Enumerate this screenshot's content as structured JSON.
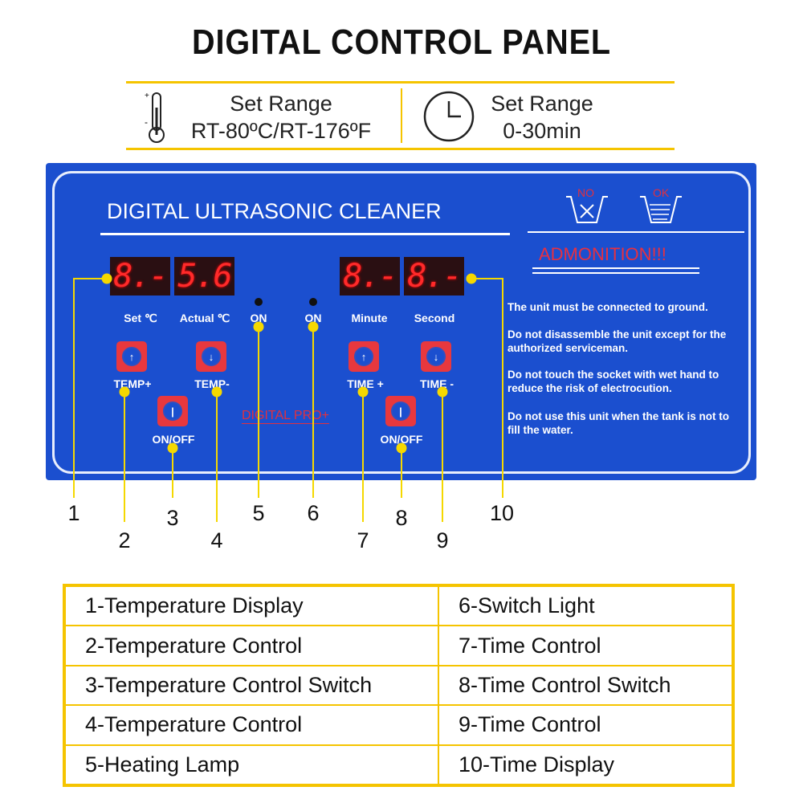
{
  "title": "DIGITAL CONTROL PANEL",
  "specs": [
    {
      "label": "Set Range",
      "value": "RT-80ºC/RT-176ºF",
      "icon": "thermometer-icon"
    },
    {
      "label": "Set Range",
      "value": "0-30min",
      "icon": "clock-icon"
    }
  ],
  "panel": {
    "heading": "DIGITAL ULTRASONIC CLEANER",
    "temp_display": [
      "8.-",
      "5.6"
    ],
    "time_display": [
      "8.-",
      "8.-"
    ],
    "labels": {
      "set": "Set  ℃",
      "actual": "Actual ℃",
      "on1": "ON",
      "on2": "ON",
      "minute": "Minute",
      "second": "Second",
      "temp_plus": "TEMP+",
      "temp_minus": "TEMP-",
      "onoff1": "ON/OFF",
      "time_plus": "TIME +",
      "time_minus": "TIME -",
      "onoff2": "ON/OFF"
    },
    "brand": "DIGITAL PRO+",
    "tank_no": "NO",
    "tank_ok": "OK",
    "admonition": "ADMONITION!!!",
    "warnings": [
      "The unit must be connected to ground.",
      "Do not disassemble the unit except for the authorized serviceman.",
      "Do not touch the socket with wet hand to reduce the risk of electrocution.",
      "Do not use this unit when the tank is not to fill the water."
    ]
  },
  "callouts": [
    "1",
    "2",
    "3",
    "4",
    "5",
    "6",
    "7",
    "8",
    "9",
    "10"
  ],
  "legend": [
    "1-Temperature Display",
    "6-Switch Light",
    "2-Temperature Control",
    "7-Time Control",
    "3-Temperature Control Switch",
    "8-Time Control Switch",
    "4-Temperature Control",
    "9-Time Control",
    "5-Heating Lamp",
    "10-Time Display"
  ],
  "colors": {
    "panel": "#1b4fcf",
    "accent": "#f5d800",
    "display": "#ff2a2a"
  }
}
